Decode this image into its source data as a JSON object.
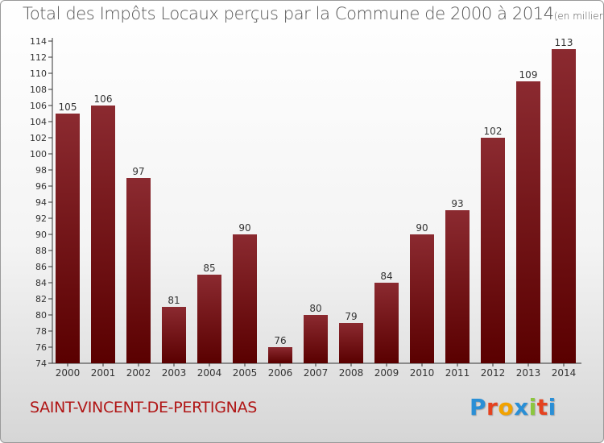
{
  "header": {
    "title": "Total des Impôts Locaux perçus par la Commune de 2000 à 2014",
    "unit": "(en milliers d'€)"
  },
  "footer": {
    "commune": "SAINT-VINCENT-DE-PERTIGNAS",
    "logo_letters": [
      "P",
      "r",
      "o",
      "x",
      "i",
      "t",
      "i"
    ],
    "logo_colors": [
      "#2a8fd6",
      "#e5421f",
      "#f2a200",
      "#2a8fd6",
      "#8cc63e",
      "#e5421f",
      "#2a8fd6"
    ]
  },
  "chart_data": {
    "type": "bar",
    "categories": [
      "2000",
      "2001",
      "2002",
      "2003",
      "2004",
      "2005",
      "2006",
      "2007",
      "2008",
      "2009",
      "2010",
      "2011",
      "2012",
      "2013",
      "2014"
    ],
    "values": [
      105,
      106,
      97,
      81,
      85,
      90,
      76,
      80,
      79,
      84,
      90,
      93,
      102,
      109,
      113
    ],
    "ylim": [
      74,
      114
    ],
    "yticks": [
      74,
      76,
      78,
      80,
      82,
      84,
      86,
      88,
      90,
      92,
      94,
      96,
      98,
      100,
      102,
      104,
      106,
      108,
      110,
      112,
      114
    ],
    "grid": false,
    "bar_color_top": "#8b2a30",
    "bar_color_bottom": "#5a0000"
  }
}
